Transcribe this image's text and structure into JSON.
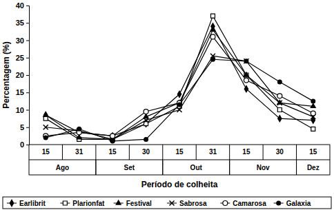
{
  "chart_data": {
    "type": "line",
    "x_label": "Período de colheita",
    "y_label": "Percentagem (%)",
    "categories": [
      "15",
      "31",
      "15",
      "30",
      "15",
      "31",
      "15",
      "30",
      "15"
    ],
    "groups": [
      {
        "name": "Ago",
        "count": 2
      },
      {
        "name": "Set",
        "count": 2
      },
      {
        "name": "Out",
        "count": 2
      },
      {
        "name": "Nov",
        "count": 2
      },
      {
        "name": "Dez",
        "count": 1
      }
    ],
    "ylim": [
      0,
      40
    ],
    "yticks": [
      0,
      5,
      10,
      15,
      20,
      25,
      30,
      35,
      40
    ],
    "grid": false,
    "legend": "bottom",
    "series": [
      {
        "name": "Earlibrit",
        "color": "#000000",
        "marker": "diamond",
        "values": [
          8.5,
          3.5,
          2.5,
          6,
          14.5,
          34,
          16,
          7.5,
          7
        ]
      },
      {
        "name": "Plarionfat",
        "color": "#000000",
        "marker": "square",
        "values": [
          7.5,
          1.5,
          1.5,
          6,
          11,
          37,
          20,
          10,
          4.5
        ]
      },
      {
        "name": "Festival",
        "color": "#000000",
        "marker": "triangle",
        "values": [
          8.5,
          2,
          1.5,
          8,
          12,
          33,
          20,
          12,
          11
        ]
      },
      {
        "name": "Sabrosa",
        "color": "#000000",
        "marker": "x",
        "values": [
          5,
          4,
          1.5,
          7,
          10,
          25.5,
          24,
          12,
          8
        ]
      },
      {
        "name": "Camarosa",
        "color": "#000000",
        "marker": "circle-open",
        "values": [
          2.5,
          3.5,
          2.5,
          9.5,
          12,
          31,
          18.5,
          14,
          9
        ]
      },
      {
        "name": "Galaxia",
        "color": "#000000",
        "marker": "circle",
        "values": [
          2,
          4.5,
          1,
          1.5,
          11.5,
          24.5,
          24,
          18,
          12.5
        ]
      }
    ]
  }
}
